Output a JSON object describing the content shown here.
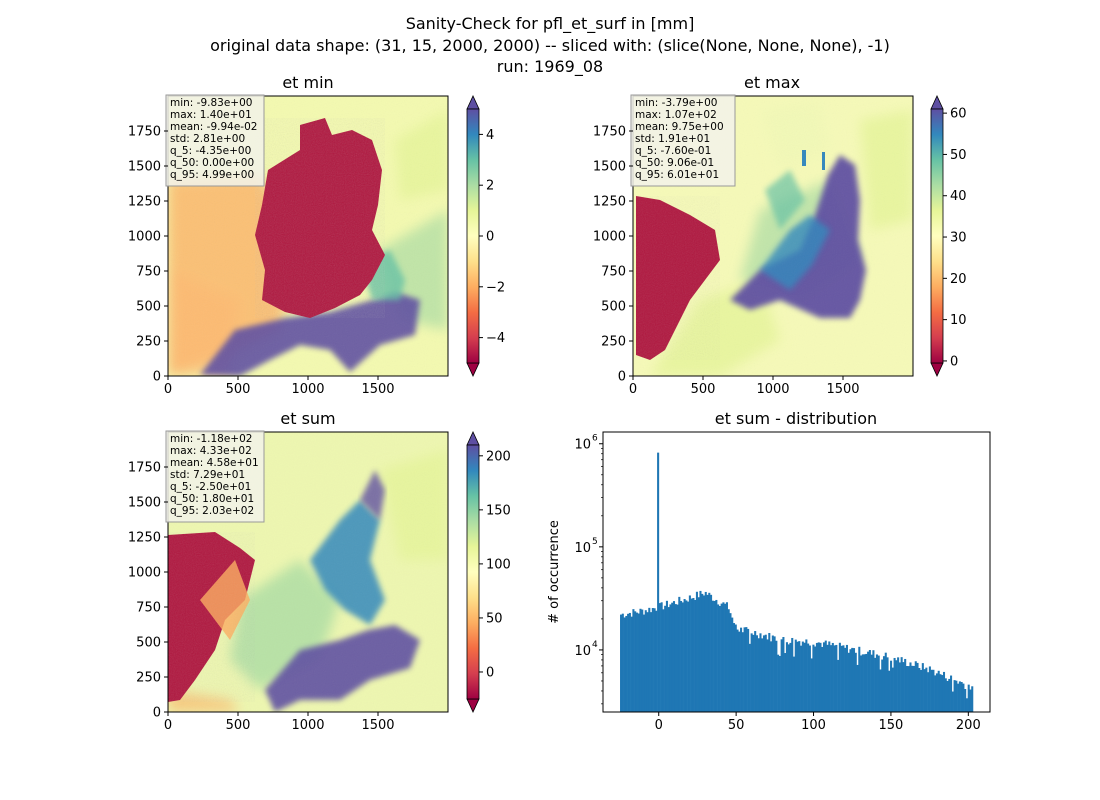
{
  "suptitle": {
    "line1": "Sanity-Check for pfl_et_surf in [mm]",
    "line2": "original data shape: (31, 15, 2000, 2000) -- sliced with: (slice(None, None, None), -1)",
    "line3": "run: 1969_08"
  },
  "colors": {
    "hist_bar": "#1f77b4",
    "spectral": [
      "#9e0142",
      "#d53e4f",
      "#f46d43",
      "#fdae61",
      "#fee08b",
      "#ffffbf",
      "#e6f598",
      "#abdda4",
      "#66c2a5",
      "#3288bd",
      "#5e4fa2"
    ]
  },
  "chart_data": [
    {
      "type": "heatmap",
      "title": "et min",
      "xticks": [
        "0",
        "500",
        "1000",
        "1500"
      ],
      "yticks": [
        "0",
        "250",
        "500",
        "750",
        "1000",
        "1250",
        "1500",
        "1750"
      ],
      "xlim": [
        0,
        2000
      ],
      "ylim": [
        0,
        2000
      ],
      "colorbar": {
        "ticks": [
          "−4",
          "−2",
          "0",
          "2",
          "4"
        ],
        "tick_values": [
          -4,
          -2,
          0,
          2,
          4
        ],
        "range": [
          -5,
          5
        ],
        "extend": "both"
      },
      "stats": [
        "min: -9.83e+00",
        "max: 1.40e+01",
        "mean: -9.94e-02",
        "std: 2.81e+00",
        "q_5: -4.35e+00",
        "q_50: 0.00e+00",
        "q_95: 4.99e+00"
      ]
    },
    {
      "type": "heatmap",
      "title": "et max",
      "xticks": [
        "0",
        "500",
        "1000",
        "1500"
      ],
      "yticks": [
        "0",
        "250",
        "500",
        "750",
        "1000",
        "1250",
        "1500",
        "1750"
      ],
      "xlim": [
        0,
        2000
      ],
      "ylim": [
        0,
        2000
      ],
      "colorbar": {
        "ticks": [
          "0",
          "10",
          "20",
          "30",
          "40",
          "50",
          "60"
        ],
        "tick_values": [
          0,
          10,
          20,
          30,
          40,
          50,
          60
        ],
        "range": [
          -0.5,
          61
        ],
        "extend": "both"
      },
      "stats": [
        "min: -3.79e+00",
        "max: 1.07e+02",
        "mean: 9.75e+00",
        "std: 1.91e+01",
        "q_5: -7.60e-01",
        "q_50: 9.06e-01",
        "q_95: 6.01e+01"
      ]
    },
    {
      "type": "heatmap",
      "title": "et sum",
      "xticks": [
        "0",
        "500",
        "1000",
        "1500"
      ],
      "yticks": [
        "0",
        "250",
        "500",
        "750",
        "1000",
        "1250",
        "1500",
        "1750"
      ],
      "xlim": [
        0,
        2000
      ],
      "ylim": [
        0,
        2000
      ],
      "colorbar": {
        "ticks": [
          "0",
          "50",
          "100",
          "150",
          "200"
        ],
        "tick_values": [
          0,
          50,
          100,
          150,
          200
        ],
        "range": [
          -25,
          210
        ],
        "extend": "both"
      },
      "stats": [
        "min: -1.18e+02",
        "max: 4.33e+02",
        "mean: 4.58e+01",
        "std: 7.29e+01",
        "q_5: -2.50e+01",
        "q_50: 1.80e+01",
        "q_95: 2.03e+02"
      ]
    },
    {
      "type": "bar",
      "title": "et sum - distribution",
      "ylabel": "# of occurrence",
      "yscale": "log",
      "xlim": [
        -36,
        214
      ],
      "ylim": [
        2500,
        1300000
      ],
      "xticks": [
        "0",
        "50",
        "100",
        "150",
        "200"
      ],
      "xtick_values": [
        0,
        50,
        100,
        150,
        200
      ],
      "yticks": [
        "10",
        "10",
        "10"
      ],
      "ytick_exp": [
        "4",
        "5",
        "6"
      ],
      "ytick_values": [
        10000,
        100000,
        1000000
      ],
      "bins": [
        -25,
        203
      ],
      "peak": {
        "x": 0,
        "value": 820000
      },
      "envelope": [
        [
          -25,
          22000
        ],
        [
          -10,
          24000
        ],
        [
          0,
          26000
        ],
        [
          20,
          32000
        ],
        [
          30,
          36000
        ],
        [
          45,
          26000
        ],
        [
          50,
          16000
        ],
        [
          60,
          15000
        ],
        [
          80,
          12500
        ],
        [
          100,
          12000
        ],
        [
          120,
          10500
        ],
        [
          150,
          8500
        ],
        [
          175,
          6500
        ],
        [
          200,
          4500
        ]
      ]
    }
  ]
}
